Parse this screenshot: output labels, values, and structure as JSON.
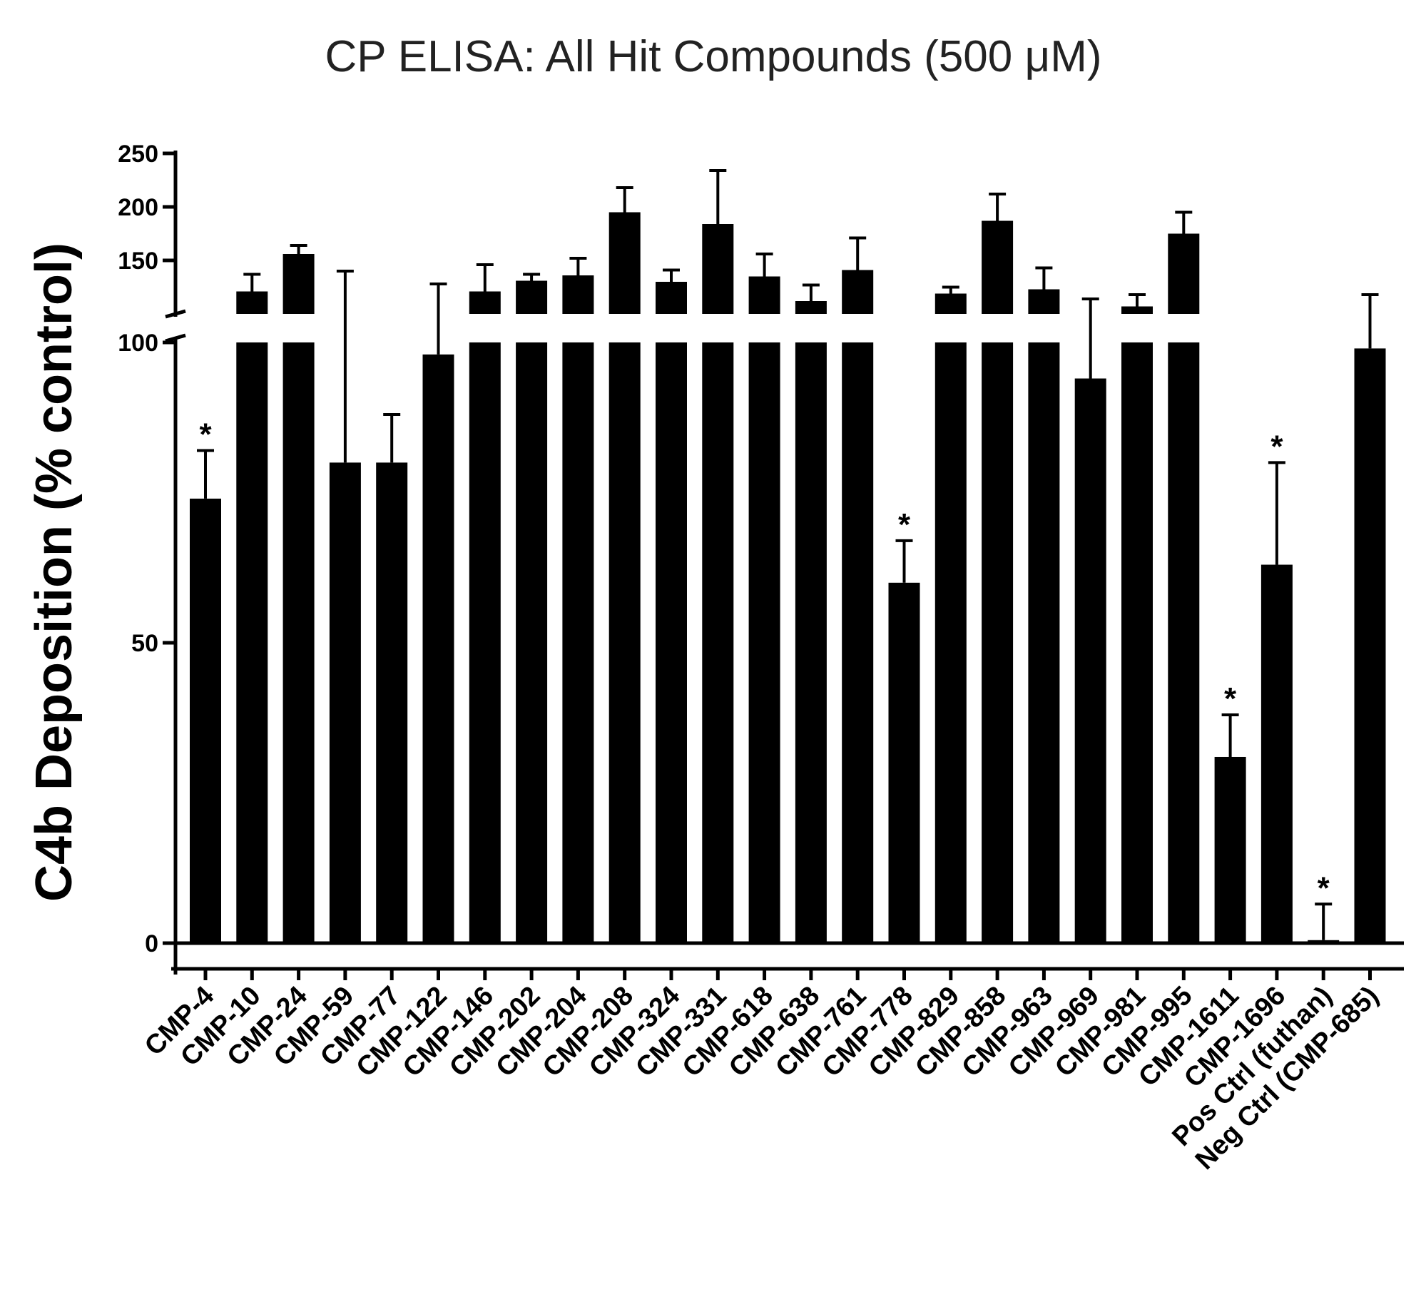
{
  "chart_data": {
    "type": "bar",
    "title": "CP ELISA: All Hit Compounds (500 μM)",
    "ylabel": "C4b Deposition  (% control)",
    "xlabel": "",
    "y_axis": {
      "type": "broken",
      "lower_range": [
        0,
        100
      ],
      "upper_range": [
        100,
        250
      ],
      "ticks_lower": [
        0,
        50,
        100
      ],
      "ticks_upper": [
        150,
        200,
        250
      ],
      "tick_labels_lower": [
        "0",
        "50",
        "100"
      ],
      "tick_labels_upper": [
        "150",
        "200",
        "250"
      ]
    },
    "categories": [
      "CMP-4",
      "CMP-10",
      "CMP-24",
      "CMP-59",
      "CMP-77",
      "CMP-122",
      "CMP-146",
      "CMP-202",
      "CMP-204",
      "CMP-208",
      "CMP-324",
      "CMP-331",
      "CMP-618",
      "CMP-638",
      "CMP-761",
      "CMP-778",
      "CMP-829",
      "CMP-858",
      "CMP-963",
      "CMP-969",
      "CMP-981",
      "CMP-995",
      "CMP-1611",
      "CMP-1696",
      "Pos Ctrl (futhan)",
      "Neg Ctrl (CMP-685)"
    ],
    "values": [
      74,
      121,
      156,
      80,
      80,
      98,
      121,
      131,
      136,
      195,
      130,
      184,
      135,
      112,
      141,
      60,
      119,
      187,
      123,
      94,
      107,
      175,
      31,
      63,
      0.5,
      99
    ],
    "errors": [
      8,
      16,
      8,
      60,
      8,
      30,
      25,
      6,
      16,
      23,
      11,
      50,
      21,
      15,
      30,
      7,
      6,
      25,
      20,
      20,
      11,
      20,
      7,
      17,
      6,
      19
    ],
    "significance_label": "*",
    "significant": [
      true,
      false,
      false,
      false,
      false,
      false,
      false,
      false,
      false,
      false,
      false,
      false,
      false,
      false,
      false,
      true,
      false,
      false,
      false,
      false,
      false,
      false,
      true,
      true,
      true,
      false
    ],
    "colors": {
      "bar": "#000000",
      "axis": "#000000"
    },
    "grid": false,
    "legend": "none"
  }
}
